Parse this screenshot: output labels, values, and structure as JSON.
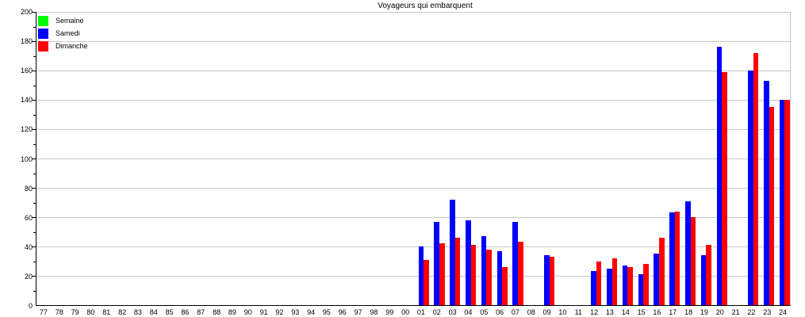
{
  "window": {
    "title": "Voyageurs qui embarquent"
  },
  "colors": {
    "background": "#ffffff",
    "grid": "#c8c8c8",
    "axis": "#000000",
    "semaine": "#00ff00",
    "samedi": "#0000ff",
    "dimanche": "#ff0000"
  },
  "legend": {
    "position": "top-left",
    "items": [
      {
        "label": "Semaine",
        "color": "#00ff00"
      },
      {
        "label": "Samedi",
        "color": "#0000ff"
      },
      {
        "label": "Dimanche",
        "color": "#ff0000"
      }
    ]
  },
  "chart_data": {
    "type": "bar",
    "title": "Voyageurs qui embarquent",
    "xlabel": "",
    "ylabel": "",
    "ylim": [
      0,
      200
    ],
    "ytick_major_step": 20,
    "ytick_minor_step": 10,
    "yticks": [
      0,
      20,
      40,
      60,
      80,
      100,
      120,
      140,
      160,
      180,
      200
    ],
    "grid": true,
    "legend_position": "top-left",
    "categories": [
      "77",
      "78",
      "79",
      "80",
      "81",
      "82",
      "83",
      "84",
      "85",
      "86",
      "87",
      "88",
      "89",
      "90",
      "91",
      "92",
      "93",
      "94",
      "95",
      "96",
      "97",
      "98",
      "99",
      "00",
      "01",
      "02",
      "03",
      "04",
      "05",
      "06",
      "07",
      "08",
      "09",
      "10",
      "11",
      "12",
      "13",
      "14",
      "15",
      "16",
      "17",
      "18",
      "19",
      "20",
      "21",
      "22",
      "23",
      "24"
    ],
    "series": [
      {
        "name": "Semaine",
        "color": "#00ff00",
        "values": [
          0,
          0,
          0,
          0,
          0,
          0,
          0,
          0,
          0,
          0,
          0,
          0,
          0,
          0,
          0,
          0,
          0,
          0,
          0,
          0,
          0,
          0,
          0,
          0,
          0,
          0,
          0,
          0,
          0,
          0,
          0,
          0,
          0,
          0,
          0,
          0,
          0,
          0,
          0,
          0,
          0,
          0,
          0,
          0,
          0,
          0,
          0,
          0
        ]
      },
      {
        "name": "Samedi",
        "color": "#0000ff",
        "values": [
          0,
          0,
          0,
          0,
          0,
          0,
          0,
          0,
          0,
          0,
          0,
          0,
          0,
          0,
          0,
          0,
          0,
          0,
          0,
          0,
          0,
          0,
          0,
          0,
          40,
          57,
          72,
          58,
          47,
          37,
          57,
          0,
          34,
          0,
          0,
          23,
          25,
          27,
          21,
          35,
          63,
          71,
          34,
          176,
          0,
          160,
          153,
          140
        ]
      },
      {
        "name": "Dimanche",
        "color": "#ff0000",
        "values": [
          0,
          0,
          0,
          0,
          0,
          0,
          0,
          0,
          0,
          0,
          0,
          0,
          0,
          0,
          0,
          0,
          0,
          0,
          0,
          0,
          0,
          0,
          0,
          0,
          31,
          42,
          46,
          41,
          38,
          26,
          43,
          0,
          33,
          0,
          0,
          30,
          32,
          26,
          28,
          46,
          64,
          60,
          41,
          159,
          0,
          172,
          135,
          140
        ]
      }
    ]
  }
}
